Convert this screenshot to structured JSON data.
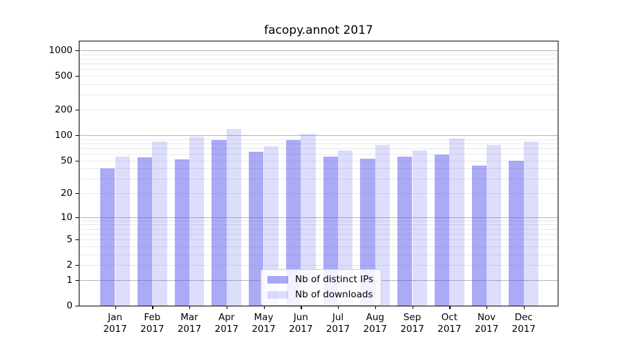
{
  "title": "facopy.annot 2017",
  "chart_data": {
    "type": "bar",
    "title": "facopy.annot 2017",
    "categories": [
      "Jan 2017",
      "Feb 2017",
      "Mar 2017",
      "Apr 2017",
      "May 2017",
      "Jun 2017",
      "Jul 2017",
      "Aug 2017",
      "Sep 2017",
      "Oct 2017",
      "Nov 2017",
      "Dec 2017"
    ],
    "series": [
      {
        "name": "Nb of distinct IPs",
        "color": "#aaaaf7",
        "fill": "rgba(85,85,240,0.5)",
        "values": [
          40,
          54,
          51,
          87,
          63,
          87,
          56,
          52,
          56,
          59,
          43,
          50
        ]
      },
      {
        "name": "Nb of downloads",
        "color": "#ddddfb",
        "fill": "rgba(85,85,240,0.2)",
        "values": [
          56,
          84,
          97,
          118,
          74,
          104,
          66,
          77,
          66,
          91,
          76,
          84
        ]
      }
    ],
    "yscale": "log10(value+1)",
    "y_ticks": [
      0,
      1,
      2,
      5,
      10,
      20,
      50,
      100,
      200,
      500,
      1000
    ],
    "ylim": [
      0,
      1320
    ],
    "xlabel": "",
    "ylabel": "",
    "grid": "both",
    "grid_minor_color": "#e8e8e8",
    "grid_major_color": "#b3b3b3",
    "legend_position": "lower center"
  }
}
